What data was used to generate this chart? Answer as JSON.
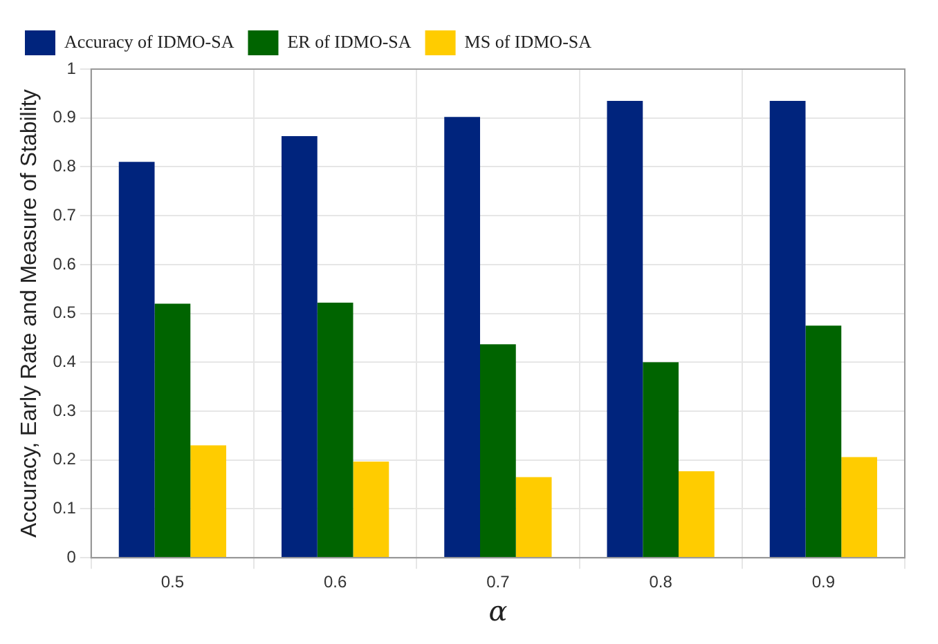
{
  "chart_data": {
    "type": "bar",
    "xlabel": "α",
    "ylabel": "Accuracy, Early Rate and Measure of Stability",
    "categories": [
      "0.5",
      "0.6",
      "0.7",
      "0.8",
      "0.9"
    ],
    "series": [
      {
        "name": "Accuracy of IDMO-SA",
        "color": "#00247d",
        "values": [
          0.81,
          0.863,
          0.902,
          0.935,
          0.935
        ]
      },
      {
        "name": "ER of IDMO-SA",
        "color": "#006400",
        "values": [
          0.52,
          0.522,
          0.437,
          0.4,
          0.475
        ]
      },
      {
        "name": "MS of IDMO-SA",
        "color": "#ffcc00",
        "values": [
          0.23,
          0.197,
          0.165,
          0.177,
          0.206
        ]
      }
    ],
    "ylim": [
      0,
      1
    ],
    "yticks": [
      0,
      0.1,
      0.2,
      0.3,
      0.4,
      0.5,
      0.6,
      0.7,
      0.8,
      0.9,
      1
    ],
    "grid": true,
    "legend": "top"
  }
}
